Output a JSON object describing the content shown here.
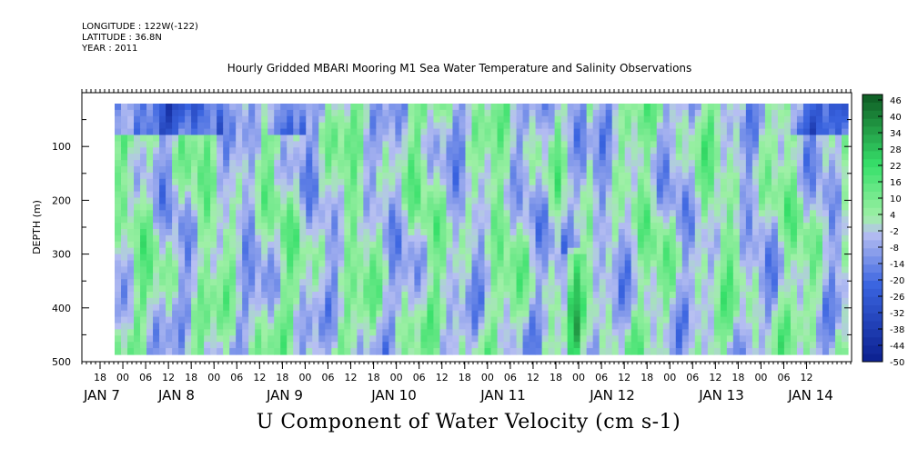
{
  "header": {
    "longitude": "LONGITUDE : 122W(-122)",
    "latitude": "LATITUDE : 36.8N",
    "year": "YEAR : 2011"
  },
  "chart_data": {
    "type": "heatmap",
    "title": "Hourly Gridded MBARI Mooring M1 Sea Water Temperature and Salinity Observations",
    "xlabel": "U Component of Water Velocity (cm s-1)",
    "ylabel": "DEPTH (m)",
    "ylim": [
      500,
      0
    ],
    "y_ticks": [
      100,
      200,
      300,
      400,
      500
    ],
    "x_hour_ticks": [
      "18",
      "00",
      "06",
      "12",
      "18",
      "00",
      "06",
      "12",
      "18",
      "00",
      "06",
      "12",
      "18",
      "00",
      "06",
      "12",
      "18",
      "00",
      "06",
      "12",
      "18",
      "00",
      "06",
      "12",
      "18",
      "00",
      "06",
      "12",
      "18",
      "00",
      "06",
      "12"
    ],
    "x_day_labels": [
      "JAN 7",
      "JAN 8",
      "JAN 9",
      "JAN 10",
      "JAN 11",
      "JAN 12",
      "JAN 13",
      "JAN 14"
    ],
    "colorbar_labels": [
      46,
      40,
      34,
      28,
      22,
      16,
      10,
      4,
      -2,
      -8,
      -14,
      -20,
      -26,
      -32,
      -38,
      -44,
      -50
    ],
    "colorbar_range": [
      -50,
      48
    ],
    "colors": {
      "neg_strong": "#0a1f8f",
      "neg_mid": "#3a64e0",
      "neg_light": "#b7bff2",
      "pos_light": "#9ff0a6",
      "pos_mid": "#37e06a",
      "pos_strong": "#0e5a23"
    }
  }
}
